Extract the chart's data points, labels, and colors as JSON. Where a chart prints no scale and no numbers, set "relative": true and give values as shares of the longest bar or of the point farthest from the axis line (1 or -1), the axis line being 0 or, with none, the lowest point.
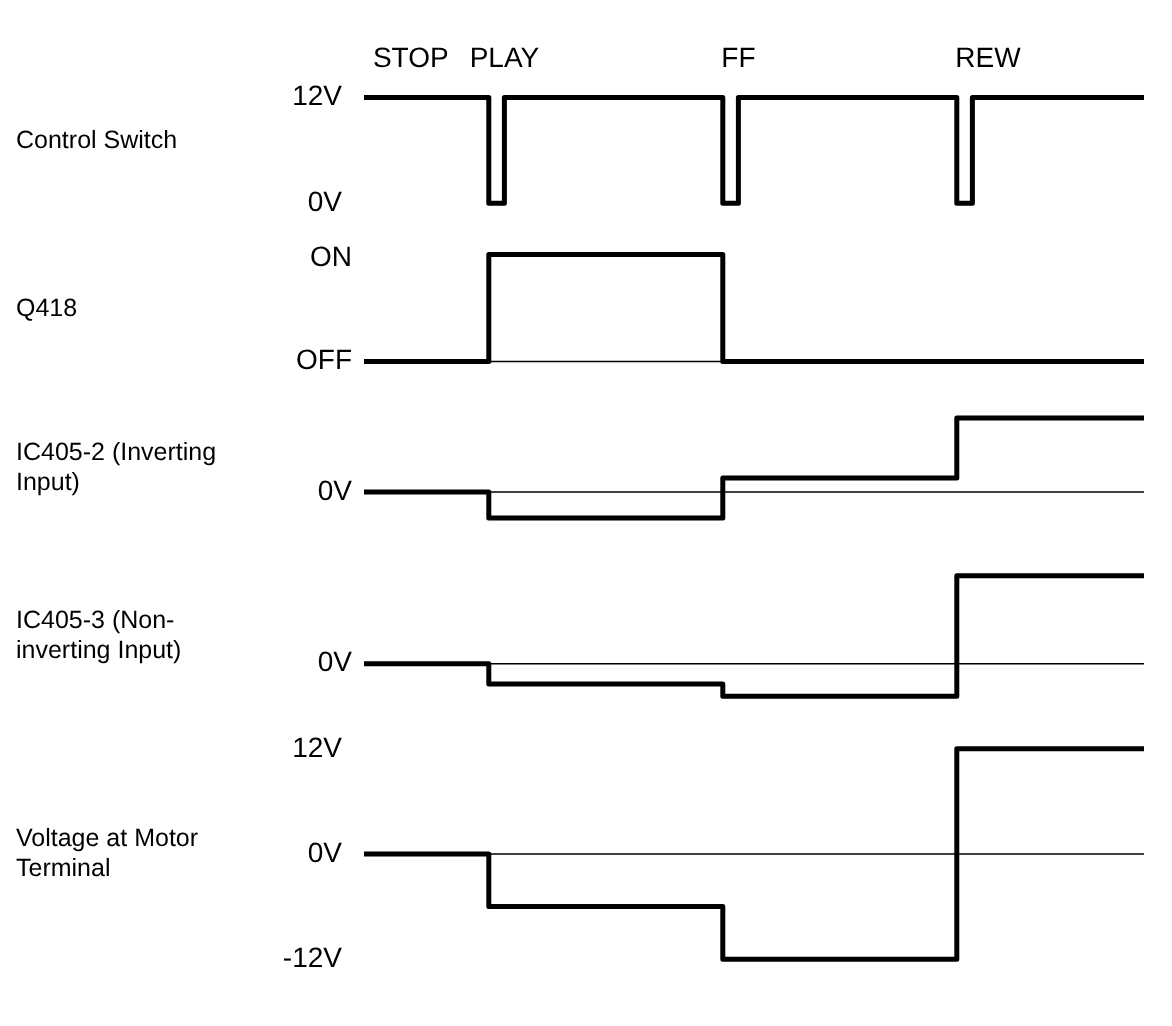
{
  "chart_data": [
    {
      "type": "step",
      "ylabel": "Control Switch",
      "categories": [
        null,
        null,
        null,
        "STOP",
        null,
        null,
        null,
        null,
        null,
        "PLAY",
        null,
        null,
        null,
        null,
        null,
        null,
        null,
        null,
        null,
        null,
        null,
        null,
        null,
        null,
        "FF",
        null,
        null,
        null,
        null,
        null,
        null,
        null,
        null,
        null,
        null,
        null,
        null,
        null,
        null,
        null,
        "REW",
        null,
        null,
        null,
        null,
        null,
        null,
        null,
        null,
        null,
        null
      ],
      "series": [
        {
          "color": "#000000",
          "values": [
            12,
            12,
            12,
            12,
            12,
            12,
            12,
            12,
            0,
            12,
            12,
            12,
            12,
            12,
            12,
            12,
            12,
            12,
            12,
            12,
            12,
            12,
            12,
            0,
            12,
            12,
            12,
            12,
            12,
            12,
            12,
            12,
            12,
            12,
            12,
            12,
            12,
            12,
            0,
            12,
            12,
            12,
            12,
            12,
            12,
            12,
            12,
            12,
            12,
            12,
            12
          ]
        }
      ],
      "ylim": [
        0,
        12
      ],
      "yticks": [
        {
          "value": 12,
          "label": "12V"
        },
        {
          "value": 0,
          "label": "0V"
        }
      ]
    },
    {
      "type": "step",
      "ylabel": "Q418",
      "relative": true,
      "categories": [
        null,
        null,
        null,
        null,
        null,
        null,
        null,
        null,
        null,
        null,
        null,
        null,
        null,
        null,
        null,
        null,
        null,
        null,
        null,
        null,
        null,
        null,
        null,
        null,
        null,
        null,
        null,
        null,
        null,
        null,
        null,
        null,
        null,
        null,
        null,
        null,
        null,
        null,
        null,
        null,
        null,
        null,
        null,
        null,
        null,
        null,
        null,
        null,
        null,
        null,
        null
      ],
      "series": [
        {
          "color": "#000000",
          "values": [
            0,
            0,
            0,
            0,
            0,
            0,
            0,
            0,
            1,
            1,
            1,
            1,
            1,
            1,
            1,
            1,
            1,
            1,
            1,
            1,
            1,
            1,
            1,
            0,
            0,
            0,
            0,
            0,
            0,
            0,
            0,
            0,
            0,
            0,
            0,
            0,
            0,
            0,
            0,
            0,
            0,
            0,
            0,
            0,
            0,
            0,
            0,
            0,
            0,
            0,
            0
          ]
        }
      ],
      "tick_labels": false,
      "annotations": [
        "ON"
      ],
      "ref_lines": [
        {
          "axis": "y",
          "value": 0,
          "label": "OFF",
          "color": "#000000"
        }
      ]
    },
    {
      "type": "step",
      "ylabel": "IC405-2 (Inverting Input)",
      "relative": true,
      "categories": [
        null,
        null,
        null,
        null,
        null,
        null,
        null,
        null,
        null,
        null,
        null,
        null,
        null,
        null,
        null,
        null,
        null,
        null,
        null,
        null,
        null,
        null,
        null,
        null,
        null,
        null,
        null,
        null,
        null,
        null,
        null,
        null,
        null,
        null,
        null,
        null,
        null,
        null,
        null,
        null,
        null,
        null,
        null,
        null,
        null,
        null,
        null,
        null,
        null,
        null,
        null
      ],
      "series": [
        {
          "color": "#000000",
          "values": [
            0,
            0,
            0,
            0,
            0,
            0,
            0,
            0,
            -0.35,
            -0.35,
            -0.35,
            -0.35,
            -0.35,
            -0.35,
            -0.35,
            -0.35,
            -0.35,
            -0.35,
            -0.35,
            -0.35,
            -0.35,
            -0.35,
            -0.35,
            0.19,
            0.19,
            0.19,
            0.19,
            0.19,
            0.19,
            0.19,
            0.19,
            0.19,
            0.19,
            0.19,
            0.19,
            0.19,
            0.19,
            0.19,
            1,
            1,
            1,
            1,
            1,
            1,
            1,
            1,
            1,
            1,
            1,
            1,
            1
          ]
        }
      ],
      "tick_labels": false,
      "ref_lines": [
        {
          "axis": "y",
          "value": 0,
          "label": "0V",
          "color": "#000000"
        }
      ]
    },
    {
      "type": "step",
      "ylabel": "IC405-3 (Non-inverting Input)",
      "relative": true,
      "categories": [
        null,
        null,
        null,
        null,
        null,
        null,
        null,
        null,
        null,
        null,
        null,
        null,
        null,
        null,
        null,
        null,
        null,
        null,
        null,
        null,
        null,
        null,
        null,
        null,
        null,
        null,
        null,
        null,
        null,
        null,
        null,
        null,
        null,
        null,
        null,
        null,
        null,
        null,
        null,
        null,
        null,
        null,
        null,
        null,
        null,
        null,
        null,
        null,
        null,
        null,
        null
      ],
      "series": [
        {
          "color": "#000000",
          "values": [
            0,
            0,
            0,
            0,
            0,
            0,
            0,
            0,
            -0.23,
            -0.23,
            -0.23,
            -0.23,
            -0.23,
            -0.23,
            -0.23,
            -0.23,
            -0.23,
            -0.23,
            -0.23,
            -0.23,
            -0.23,
            -0.23,
            -0.23,
            -0.37,
            -0.37,
            -0.37,
            -0.37,
            -0.37,
            -0.37,
            -0.37,
            -0.37,
            -0.37,
            -0.37,
            -0.37,
            -0.37,
            -0.37,
            -0.37,
            -0.37,
            1,
            1,
            1,
            1,
            1,
            1,
            1,
            1,
            1,
            1,
            1,
            1,
            1
          ]
        }
      ],
      "tick_labels": false,
      "ref_lines": [
        {
          "axis": "y",
          "value": 0,
          "label": "0V",
          "color": "#000000"
        }
      ]
    },
    {
      "type": "step",
      "ylabel": "Voltage at Motor Terminal",
      "categories": [
        null,
        null,
        null,
        null,
        null,
        null,
        null,
        null,
        null,
        null,
        null,
        null,
        null,
        null,
        null,
        null,
        null,
        null,
        null,
        null,
        null,
        null,
        null,
        null,
        null,
        null,
        null,
        null,
        null,
        null,
        null,
        null,
        null,
        null,
        null,
        null,
        null,
        null,
        null,
        null,
        null,
        null,
        null,
        null,
        null,
        null,
        null,
        null,
        null,
        null,
        null
      ],
      "series": [
        {
          "color": "#000000",
          "values": [
            0,
            0,
            0,
            0,
            0,
            0,
            0,
            0,
            -6,
            -6,
            -6,
            -6,
            -6,
            -6,
            -6,
            -6,
            -6,
            -6,
            -6,
            -6,
            -6,
            -6,
            -6,
            -12,
            -12,
            -12,
            -12,
            -12,
            -12,
            -12,
            -12,
            -12,
            -12,
            -12,
            -12,
            -12,
            -12,
            -12,
            12,
            12,
            12,
            12,
            12,
            12,
            12,
            12,
            12,
            12,
            12,
            12,
            12
          ]
        }
      ],
      "ylim": [
        -12,
        12
      ],
      "yticks": [
        {
          "value": 12,
          "label": "12V"
        },
        {
          "value": 0,
          "label": "0V"
        },
        {
          "value": -12,
          "label": "-12V"
        }
      ],
      "tick_labels": "y",
      "ref_lines": [
        {
          "axis": "y",
          "value": 0,
          "color": "#000000"
        }
      ]
    }
  ]
}
